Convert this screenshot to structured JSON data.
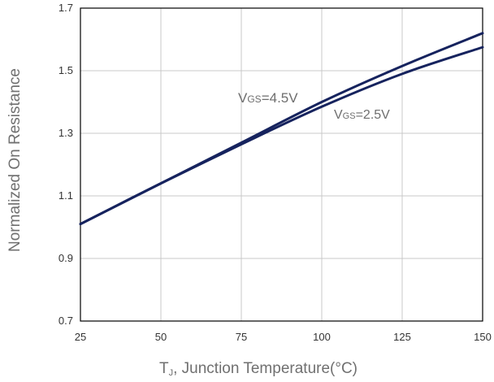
{
  "chart_data": {
    "type": "line",
    "xlabel_main": "T",
    "xlabel_sub": "J",
    "xlabel_rest": ", Junction Temperature(°C)",
    "ylabel": "Normalized On Resistance",
    "xlim": [
      25,
      150
    ],
    "ylim": [
      0.7,
      1.7
    ],
    "xticks": [
      "25",
      "50",
      "75",
      "100",
      "125",
      "150"
    ],
    "yticks": [
      "0.7",
      "0.9",
      "1.1",
      "1.3",
      "1.5",
      "1.7"
    ],
    "grid": true,
    "series": [
      {
        "name": "VGS=4.5V",
        "label_main": "V",
        "label_sub": "GS",
        "label_rest": "=4.5V",
        "x": [
          25,
          50,
          75,
          100,
          125,
          150
        ],
        "y": [
          1.01,
          1.14,
          1.27,
          1.4,
          1.515,
          1.62
        ],
        "color": "#16235e"
      },
      {
        "name": "VGS=2.5V",
        "label_main": "V",
        "label_sub": "GS",
        "label_rest": "=2.5V",
        "x": [
          25,
          50,
          75,
          100,
          125,
          150
        ],
        "y": [
          1.01,
          1.14,
          1.265,
          1.385,
          1.49,
          1.575
        ],
        "color": "#16235e"
      }
    ]
  }
}
